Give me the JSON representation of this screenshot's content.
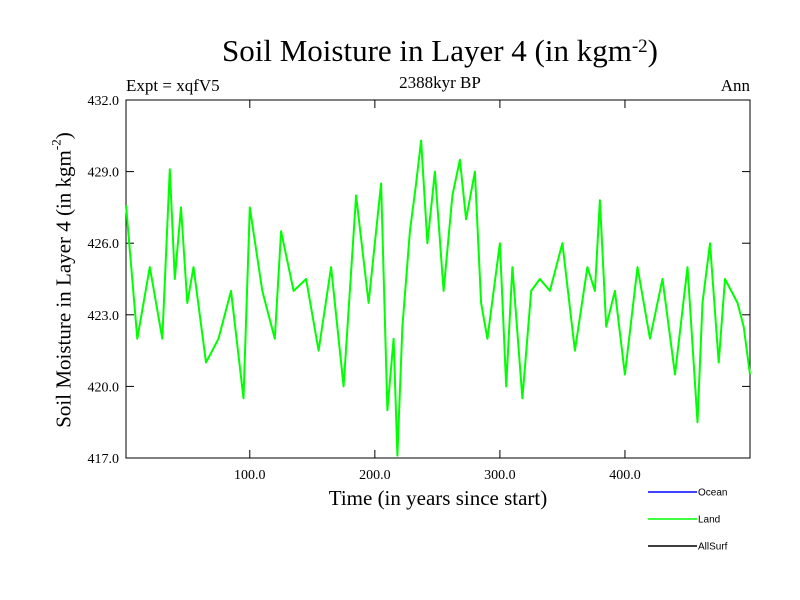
{
  "chart_data": {
    "type": "line",
    "title_main": "Soil Moisture in Layer 4 (in kgm",
    "title_sup": "-2",
    "title_close": ")",
    "subtitle": "2388kyr BP",
    "expt_label": "Expt = xqfV5",
    "season": "Ann",
    "xlabel": "Time (in years since start)",
    "ylabel_main": "Soil Moisture in Layer 4 (in kgm",
    "ylabel_sup": "-2",
    "ylabel_close": ")",
    "xlim": [
      1,
      500
    ],
    "ylim": [
      417.0,
      432.0
    ],
    "x_ticks": [
      {
        "value": 100,
        "label": "100.0"
      },
      {
        "value": 200,
        "label": "200.0"
      },
      {
        "value": 300,
        "label": "300.0"
      },
      {
        "value": 400,
        "label": "400.0"
      }
    ],
    "y_ticks": [
      {
        "value": 417,
        "label": "417.0"
      },
      {
        "value": 420,
        "label": "420.0"
      },
      {
        "value": 423,
        "label": "423.0"
      },
      {
        "value": 426,
        "label": "426.0"
      },
      {
        "value": 429,
        "label": "429.0"
      },
      {
        "value": 432,
        "label": "432.0"
      }
    ],
    "legend": [
      {
        "name": "Ocean",
        "color": "#0000ff"
      },
      {
        "name": "Land",
        "color": "#00ff00"
      },
      {
        "name": "AllSurf",
        "color": "#000000"
      }
    ],
    "series": [
      {
        "name": "Land",
        "color": "#00ff00",
        "x": [
          1,
          10,
          20,
          30,
          36,
          40,
          45,
          50,
          55,
          65,
          75,
          85,
          95,
          100,
          110,
          120,
          125,
          135,
          145,
          155,
          165,
          175,
          185,
          195,
          205,
          210,
          215,
          218,
          222,
          228,
          233,
          237,
          242,
          248,
          255,
          262,
          268,
          273,
          280,
          285,
          290,
          300,
          305,
          310,
          318,
          325,
          332,
          340,
          350,
          360,
          370,
          376,
          380,
          385,
          392,
          400,
          410,
          420,
          430,
          440,
          450,
          458,
          462,
          468,
          475,
          480,
          490,
          495,
          500
        ],
        "y": [
          427.6,
          422.0,
          425.0,
          422.0,
          429.1,
          424.5,
          427.5,
          423.5,
          425.0,
          421.0,
          422.0,
          424.0,
          419.5,
          427.5,
          424.0,
          422.0,
          426.5,
          424.0,
          424.5,
          421.5,
          425.0,
          420.0,
          428.0,
          423.5,
          428.5,
          419.0,
          422.0,
          417.1,
          422.5,
          426.5,
          428.5,
          430.3,
          426.0,
          429.0,
          424.0,
          428.0,
          429.5,
          427.0,
          429.0,
          423.5,
          422.0,
          426.0,
          420.0,
          425.0,
          419.5,
          424.0,
          424.5,
          424.0,
          426.0,
          421.5,
          425.0,
          424.0,
          427.8,
          422.5,
          424.0,
          420.5,
          425.0,
          422.0,
          424.5,
          420.5,
          425.0,
          418.5,
          423.5,
          426.0,
          421.0,
          424.5,
          423.5,
          422.5,
          420.5
        ]
      }
    ]
  }
}
